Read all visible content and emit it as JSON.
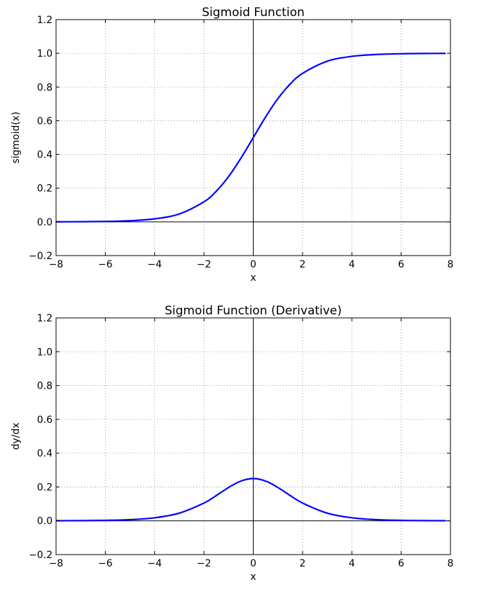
{
  "chart_data": [
    {
      "type": "line",
      "title": "Sigmoid Function",
      "xlabel": "x",
      "ylabel": "sigmoid(x)",
      "xlim": [
        -8,
        8
      ],
      "ylim": [
        -0.2,
        1.2
      ],
      "xticks": [
        -8,
        -6,
        -4,
        -2,
        0,
        2,
        4,
        6,
        8
      ],
      "xtick_labels": [
        "−8",
        "−6",
        "−4",
        "−2",
        "0",
        "2",
        "4",
        "6",
        "8"
      ],
      "yticks": [
        -0.2,
        0.0,
        0.2,
        0.4,
        0.6,
        0.8,
        1.0,
        1.2
      ],
      "ytick_labels": [
        "−0.2",
        "0.0",
        "0.2",
        "0.4",
        "0.6",
        "0.8",
        "1.0",
        "1.2"
      ],
      "grid": true,
      "line_color": "#0000ff",
      "x": [
        -8,
        -7,
        -6,
        -5,
        -4,
        -3,
        -2,
        -1.5,
        -1,
        -0.5,
        0,
        0.5,
        1,
        1.5,
        2,
        3,
        4,
        5,
        6,
        7,
        7.8
      ],
      "y": [
        0.0003,
        0.0009,
        0.0025,
        0.0067,
        0.018,
        0.047,
        0.119,
        0.182,
        0.269,
        0.378,
        0.5,
        0.622,
        0.731,
        0.818,
        0.881,
        0.953,
        0.982,
        0.993,
        0.9975,
        0.9991,
        0.9996
      ]
    },
    {
      "type": "line",
      "title": "Sigmoid Function (Derivative)",
      "xlabel": "x",
      "ylabel": "dy/dx",
      "xlim": [
        -8,
        8
      ],
      "ylim": [
        -0.2,
        1.2
      ],
      "xticks": [
        -8,
        -6,
        -4,
        -2,
        0,
        2,
        4,
        6,
        8
      ],
      "xtick_labels": [
        "−8",
        "−6",
        "−4",
        "−2",
        "0",
        "2",
        "4",
        "6",
        "8"
      ],
      "yticks": [
        -0.2,
        0.0,
        0.2,
        0.4,
        0.6,
        0.8,
        1.0,
        1.2
      ],
      "ytick_labels": [
        "−0.2",
        "0.0",
        "0.2",
        "0.4",
        "0.6",
        "0.8",
        "1.0",
        "1.2"
      ],
      "grid": true,
      "line_color": "#0000ff",
      "x": [
        -8,
        -7,
        -6,
        -5,
        -4,
        -3,
        -2,
        -1.5,
        -1,
        -0.5,
        0,
        0.5,
        1,
        1.5,
        2,
        3,
        4,
        5,
        6,
        7,
        7.8
      ],
      "y": [
        0.0003,
        0.0009,
        0.0025,
        0.0066,
        0.0177,
        0.0452,
        0.105,
        0.149,
        0.197,
        0.235,
        0.25,
        0.235,
        0.197,
        0.149,
        0.105,
        0.0452,
        0.0177,
        0.0066,
        0.0025,
        0.0009,
        0.0004
      ]
    }
  ]
}
